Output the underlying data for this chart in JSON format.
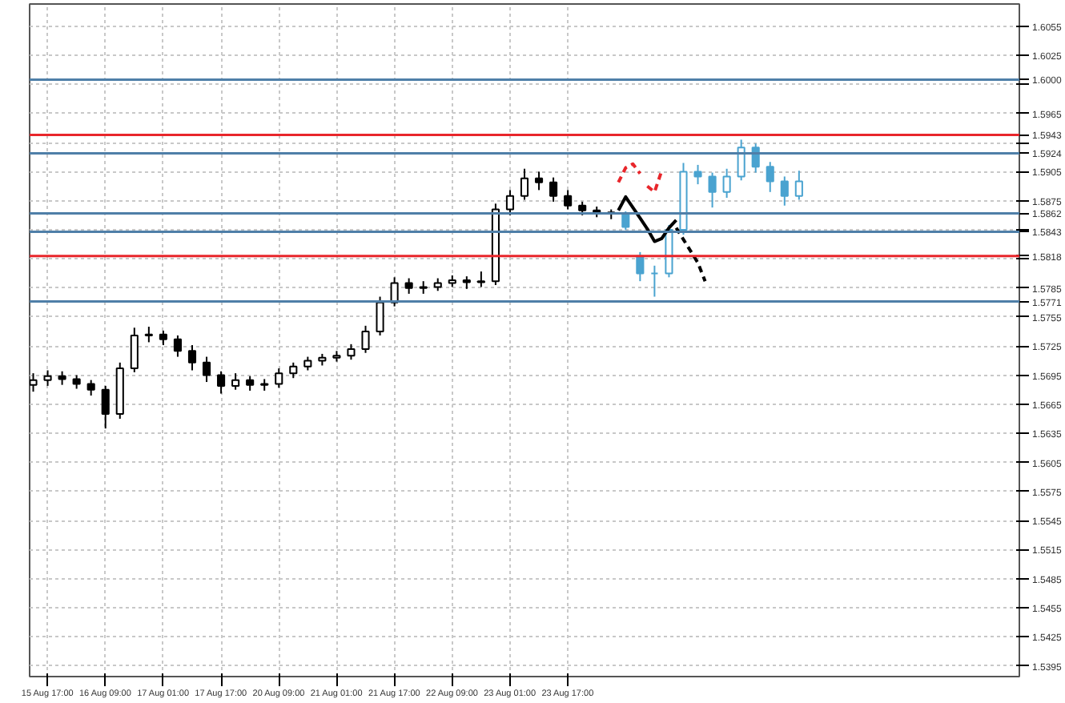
{
  "chart_data": {
    "type": "candlestick",
    "categories": [
      null,
      null,
      "15 Aug 17:00",
      null,
      null,
      null,
      null,
      null,
      null,
      null,
      "16 Aug 09:00",
      null,
      null,
      null,
      null,
      null,
      null,
      null,
      "17 Aug 01:00",
      null,
      null,
      null,
      null,
      null,
      null,
      null,
      "17 Aug 17:00",
      null,
      null,
      null,
      null,
      null,
      null,
      null,
      "20 Aug 09:00",
      null,
      null,
      null,
      null,
      null,
      null,
      null,
      "21 Aug 01:00",
      null,
      null,
      null,
      null,
      null,
      null,
      null,
      "21 Aug 17:00",
      null,
      null,
      null,
      null,
      null,
      null,
      null,
      "22 Aug 09:00",
      null,
      null,
      null,
      null,
      null,
      null,
      null,
      "23 Aug 01:00",
      null,
      null,
      null,
      null,
      null,
      null,
      null,
      "23 Aug 17:00",
      null,
      null,
      null,
      null,
      null,
      null,
      null,
      null,
      null,
      null,
      null,
      null,
      null,
      null,
      null,
      null,
      null,
      null,
      null,
      null,
      null,
      null,
      null,
      null,
      null,
      null,
      null,
      null,
      null,
      null,
      null,
      null,
      null,
      null,
      null,
      null,
      null,
      null,
      null,
      null,
      null,
      null,
      null,
      null,
      null,
      null,
      null,
      null,
      null,
      null,
      null,
      null,
      null,
      null,
      null,
      null,
      null,
      null,
      null,
      null,
      null,
      null
    ],
    "ylim": [
      1.5384,
      1.6078
    ],
    "yticks": [
      1.6055,
      1.6025,
      {
        "value": 1.5995,
        "label": null
      },
      1.5965,
      {
        "value": 1.5935,
        "label": null
      },
      1.5905,
      1.5875,
      {
        "value": 1.5845,
        "label": null
      },
      {
        "value": 1.5815,
        "label": null
      },
      1.5785,
      1.5755,
      1.5725,
      1.5695,
      1.5665,
      1.5635,
      1.5605,
      1.5575,
      1.5545,
      1.5515,
      1.5485,
      1.5455,
      1.5425,
      1.5395
    ],
    "grid": true,
    "series": [
      {
        "color": "#000000",
        "ohlc": [
          [
            1.5685,
            1.5697,
            1.5678,
            1.569
          ],
          null,
          [
            1.569,
            1.57,
            1.5684,
            1.5694
          ],
          null,
          [
            1.5694,
            1.5699,
            1.5685,
            1.5691
          ],
          null,
          [
            1.5691,
            1.5695,
            1.5681,
            1.5686
          ],
          null,
          [
            1.5686,
            1.569,
            1.5674,
            1.568
          ],
          null,
          [
            1.568,
            1.5684,
            1.564,
            1.5655
          ],
          null,
          [
            1.5655,
            1.5708,
            1.565,
            1.5702
          ],
          null,
          [
            1.5702,
            1.5744,
            1.5698,
            1.5736
          ],
          null,
          [
            1.5736,
            1.5745,
            1.5729,
            1.5737
          ],
          null,
          [
            1.5737,
            1.5741,
            1.5726,
            1.5732
          ],
          null,
          [
            1.5732,
            1.5736,
            1.5714,
            1.572
          ],
          null,
          [
            1.572,
            1.5726,
            1.57,
            1.5708
          ],
          null,
          [
            1.5708,
            1.5714,
            1.5688,
            1.5695
          ],
          null,
          [
            1.5695,
            1.5699,
            1.5676,
            1.5684
          ],
          null,
          [
            1.5684,
            1.5697,
            1.568,
            1.569
          ],
          null,
          [
            1.569,
            1.5694,
            1.5679,
            1.5685
          ],
          null,
          [
            1.5685,
            1.5691,
            1.5679,
            1.5686
          ],
          null,
          [
            1.5686,
            1.5702,
            1.5682,
            1.5697
          ],
          null,
          [
            1.5697,
            1.5708,
            1.5692,
            1.5704
          ],
          null,
          [
            1.5704,
            1.5714,
            1.57,
            1.571
          ],
          null,
          [
            1.571,
            1.5717,
            1.5705,
            1.5713
          ],
          null,
          [
            1.5713,
            1.572,
            1.5709,
            1.5715
          ],
          null,
          [
            1.5715,
            1.5727,
            1.5711,
            1.5722
          ],
          null,
          [
            1.5722,
            1.5746,
            1.5718,
            1.574
          ],
          null,
          [
            1.574,
            1.5776,
            1.5736,
            1.577
          ],
          null,
          [
            1.577,
            1.5796,
            1.5766,
            1.579
          ],
          null,
          [
            1.579,
            1.5795,
            1.5779,
            1.5785
          ],
          null,
          [
            1.5785,
            1.5792,
            1.5779,
            1.5786
          ],
          null,
          [
            1.5786,
            1.5795,
            1.5782,
            1.579
          ],
          null,
          [
            1.579,
            1.5798,
            1.5786,
            1.5793
          ],
          null,
          [
            1.5793,
            1.5797,
            1.5784,
            1.5791
          ],
          null,
          [
            1.5791,
            1.5802,
            1.5786,
            1.5792
          ],
          null,
          [
            1.5792,
            1.5872,
            1.5788,
            1.5866
          ],
          null,
          [
            1.5866,
            1.5886,
            1.586,
            1.588
          ],
          null,
          [
            1.588,
            1.5908,
            1.5876,
            1.5898
          ],
          null,
          [
            1.5898,
            1.5905,
            1.5886,
            1.5894
          ],
          null,
          [
            1.5894,
            1.5899,
            1.5874,
            1.588
          ],
          null,
          [
            1.588,
            1.5886,
            1.5866,
            1.587
          ],
          null,
          [
            1.587,
            1.5874,
            1.586,
            1.5865
          ],
          null,
          [
            1.5865,
            1.5869,
            1.5858,
            1.5863
          ],
          null,
          [
            1.5863,
            1.5866,
            1.5856,
            1.5862
          ],
          null,
          null,
          null,
          null,
          null,
          null,
          null,
          null,
          null,
          null,
          null,
          null,
          null,
          null,
          null,
          null,
          null,
          null,
          null,
          null,
          null,
          null,
          null,
          null,
          null,
          null,
          null,
          null,
          null,
          null,
          null,
          null,
          null,
          null,
          null,
          null,
          null,
          null,
          null,
          null,
          null,
          null,
          null,
          null,
          null,
          null,
          null,
          null,
          null,
          null,
          null,
          null,
          null,
          null,
          null,
          null
        ]
      },
      {
        "color": "#4aa3d0",
        "ohlc": [
          null,
          null,
          null,
          null,
          null,
          null,
          null,
          null,
          null,
          null,
          null,
          null,
          null,
          null,
          null,
          null,
          null,
          null,
          null,
          null,
          null,
          null,
          null,
          null,
          null,
          null,
          null,
          null,
          null,
          null,
          null,
          null,
          null,
          null,
          null,
          null,
          null,
          null,
          null,
          null,
          null,
          null,
          null,
          null,
          null,
          null,
          null,
          null,
          null,
          null,
          null,
          null,
          null,
          null,
          null,
          null,
          null,
          null,
          null,
          null,
          null,
          null,
          null,
          null,
          null,
          null,
          null,
          null,
          null,
          null,
          null,
          null,
          null,
          null,
          null,
          null,
          null,
          null,
          null,
          null,
          null,
          null,
          [
            1.5862,
            1.5864,
            1.5845,
            1.5848
          ],
          null,
          [
            1.5818,
            1.5822,
            1.5792,
            1.58
          ],
          null,
          [
            1.58,
            1.5808,
            1.5776,
            1.58
          ],
          null,
          [
            1.58,
            1.585,
            1.5796,
            1.5845
          ],
          null,
          [
            1.5845,
            1.5914,
            1.584,
            1.5905
          ],
          null,
          [
            1.5905,
            1.5912,
            1.5892,
            1.59
          ],
          null,
          [
            1.59,
            1.5904,
            1.5868,
            1.5884
          ],
          null,
          [
            1.5884,
            1.5908,
            1.5878,
            1.59
          ],
          null,
          [
            1.59,
            1.5938,
            1.5896,
            1.593
          ],
          null,
          [
            1.593,
            1.5934,
            1.5904,
            1.591
          ],
          null,
          [
            1.591,
            1.5915,
            1.5884,
            1.5895
          ],
          null,
          [
            1.5895,
            1.59,
            1.587,
            1.588
          ],
          null,
          [
            1.588,
            1.5906,
            1.5876,
            1.5895
          ],
          null,
          null,
          null,
          null,
          null,
          null,
          null,
          null,
          null,
          null,
          null,
          null,
          null,
          null,
          null,
          null,
          null,
          null,
          null,
          null,
          null,
          null,
          null,
          null,
          null,
          null,
          null,
          null,
          null,
          null
        ]
      },
      {
        "type": "line",
        "color": "#000000",
        "line_style": "solid",
        "values": [
          null,
          null,
          null,
          null,
          null,
          null,
          null,
          null,
          null,
          null,
          null,
          null,
          null,
          null,
          null,
          null,
          null,
          null,
          null,
          null,
          null,
          null,
          null,
          null,
          null,
          null,
          null,
          null,
          null,
          null,
          null,
          null,
          null,
          null,
          null,
          null,
          null,
          null,
          null,
          null,
          null,
          null,
          null,
          null,
          null,
          null,
          null,
          null,
          null,
          null,
          null,
          null,
          null,
          null,
          null,
          null,
          null,
          null,
          null,
          null,
          null,
          null,
          null,
          null,
          null,
          null,
          null,
          null,
          null,
          null,
          null,
          null,
          null,
          null,
          null,
          null,
          null,
          null,
          null,
          null,
          null,
          1.5865,
          1.5879,
          1.5868,
          1.5857,
          1.5846,
          1.5833,
          1.5836,
          1.5847,
          1.5855,
          null,
          null,
          null,
          null,
          null,
          null,
          null,
          null,
          null,
          null,
          null,
          null,
          null,
          null,
          null,
          null,
          null,
          null,
          null,
          null,
          null,
          null,
          null,
          null,
          null,
          null,
          null,
          null,
          null,
          null,
          null,
          null,
          null,
          null,
          null,
          null,
          null,
          null,
          null,
          null,
          null,
          null,
          null,
          null,
          null,
          null,
          null
        ]
      },
      {
        "type": "line",
        "color": "#000000",
        "line_style": "dashed",
        "values": [
          null,
          null,
          null,
          null,
          null,
          null,
          null,
          null,
          null,
          null,
          null,
          null,
          null,
          null,
          null,
          null,
          null,
          null,
          null,
          null,
          null,
          null,
          null,
          null,
          null,
          null,
          null,
          null,
          null,
          null,
          null,
          null,
          null,
          null,
          null,
          null,
          null,
          null,
          null,
          null,
          null,
          null,
          null,
          null,
          null,
          null,
          null,
          null,
          null,
          null,
          null,
          null,
          null,
          null,
          null,
          null,
          null,
          null,
          null,
          null,
          null,
          null,
          null,
          null,
          null,
          null,
          null,
          null,
          null,
          null,
          null,
          null,
          null,
          null,
          null,
          null,
          null,
          null,
          null,
          null,
          null,
          null,
          null,
          null,
          null,
          null,
          null,
          null,
          null,
          1.5847,
          1.5835,
          1.5823,
          1.5811,
          1.5792,
          null,
          null,
          null,
          null,
          null,
          null,
          null,
          null,
          null,
          null,
          null,
          null,
          null,
          null,
          null,
          null,
          null,
          null,
          null,
          null,
          null,
          null,
          null,
          null,
          null,
          null,
          null,
          null,
          null,
          null,
          null,
          null,
          null,
          null,
          null,
          null,
          null,
          null,
          null,
          null,
          null,
          null,
          null
        ]
      },
      {
        "type": "line",
        "color": "#e8262b",
        "line_style": "dashed",
        "values": [
          null,
          null,
          null,
          null,
          null,
          null,
          null,
          null,
          null,
          null,
          null,
          null,
          null,
          null,
          null,
          null,
          null,
          null,
          null,
          null,
          null,
          null,
          null,
          null,
          null,
          null,
          null,
          null,
          null,
          null,
          null,
          null,
          null,
          null,
          null,
          null,
          null,
          null,
          null,
          null,
          null,
          null,
          null,
          null,
          null,
          null,
          null,
          null,
          null,
          null,
          null,
          null,
          null,
          null,
          null,
          null,
          null,
          null,
          null,
          null,
          null,
          null,
          null,
          null,
          null,
          null,
          null,
          null,
          null,
          null,
          null,
          null,
          null,
          null,
          null,
          null,
          null,
          null,
          null,
          null,
          null,
          1.5894,
          1.5909,
          1.5913,
          1.5903,
          null,
          null,
          null,
          null,
          null,
          null,
          null,
          null,
          null,
          null,
          null,
          null,
          null,
          null,
          null,
          null,
          null,
          null,
          null,
          null,
          null,
          null,
          null,
          null,
          null,
          null,
          null,
          null,
          null,
          null,
          null,
          null,
          null,
          null,
          null,
          null,
          null,
          null,
          null,
          null,
          null,
          null,
          null,
          null,
          null,
          null,
          null,
          null,
          null,
          null,
          null,
          null
        ]
      },
      {
        "type": "line",
        "color": "#e8262b",
        "line_style": "dashed",
        "values": [
          null,
          null,
          null,
          null,
          null,
          null,
          null,
          null,
          null,
          null,
          null,
          null,
          null,
          null,
          null,
          null,
          null,
          null,
          null,
          null,
          null,
          null,
          null,
          null,
          null,
          null,
          null,
          null,
          null,
          null,
          null,
          null,
          null,
          null,
          null,
          null,
          null,
          null,
          null,
          null,
          null,
          null,
          null,
          null,
          null,
          null,
          null,
          null,
          null,
          null,
          null,
          null,
          null,
          null,
          null,
          null,
          null,
          null,
          null,
          null,
          null,
          null,
          null,
          null,
          null,
          null,
          null,
          null,
          null,
          null,
          null,
          null,
          null,
          null,
          null,
          null,
          null,
          null,
          null,
          null,
          null,
          null,
          null,
          null,
          null,
          1.589,
          1.5884,
          1.5906,
          null,
          null,
          null,
          null,
          null,
          null,
          null,
          null,
          null,
          null,
          null,
          null,
          null,
          null,
          null,
          null,
          null,
          null,
          null,
          null,
          null,
          null,
          null,
          null,
          null,
          null,
          null,
          null,
          null,
          null,
          null,
          null,
          null,
          null,
          null,
          null,
          null,
          null,
          null,
          null,
          null,
          null,
          null,
          null,
          null,
          null,
          null,
          null,
          null
        ]
      }
    ],
    "ref_lines": [
      {
        "axis": "y",
        "value": 1.6,
        "label": "1.6000",
        "color": "#4f7fa8"
      },
      {
        "axis": "y",
        "value": 1.5943,
        "label": "1.5943",
        "color": "#e8262b"
      },
      {
        "axis": "y",
        "value": 1.5924,
        "label": "1.5924",
        "color": "#4f7fa8"
      },
      {
        "axis": "y",
        "value": 1.5862,
        "label": "1.5862",
        "color": "#4f7fa8"
      },
      {
        "axis": "y",
        "value": 1.5843,
        "label": "1.5843",
        "color": "#4f7fa8"
      },
      {
        "axis": "y",
        "value": 1.5818,
        "label": "1.5818",
        "color": "#e8262b"
      },
      {
        "axis": "y",
        "value": 1.5771,
        "label": "1.5771",
        "color": "#4f7fa8"
      }
    ]
  }
}
